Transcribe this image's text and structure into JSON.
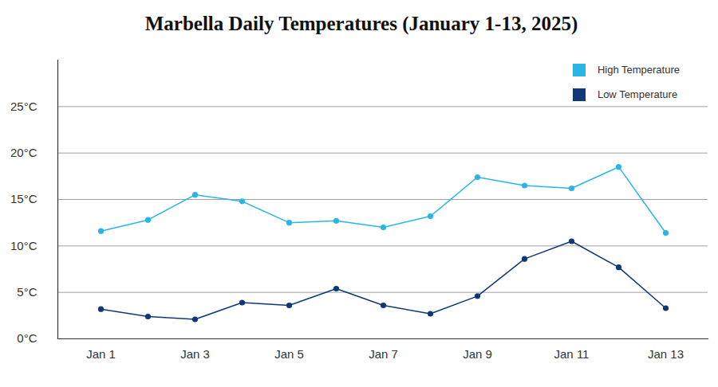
{
  "chart_data": {
    "type": "line",
    "title": "Marbella Daily Temperatures (January 1-13, 2025)",
    "categories": [
      "Jan 1",
      null,
      "Jan 3",
      null,
      "Jan 5",
      null,
      "Jan 7",
      null,
      "Jan 9",
      null,
      "Jan 11",
      null,
      "Jan 13"
    ],
    "series": [
      {
        "name": "High Temperature",
        "color": "#29b5e6",
        "values": [
          11.6,
          12.8,
          15.5,
          14.8,
          12.5,
          12.7,
          12.0,
          13.2,
          17.4,
          16.5,
          16.2,
          18.5,
          11.4
        ]
      },
      {
        "name": "Low Temperature",
        "color": "#0f3878",
        "values": [
          3.2,
          2.4,
          2.1,
          3.9,
          3.6,
          5.4,
          3.6,
          2.7,
          4.6,
          8.6,
          10.5,
          7.7,
          3.3
        ]
      }
    ],
    "ylim": [
      0,
      30
    ],
    "yticks": [
      {
        "value": 0,
        "label": "0°C"
      },
      {
        "value": 5,
        "label": "5°C"
      },
      {
        "value": 10,
        "label": "10°C"
      },
      {
        "value": 15,
        "label": "15°C"
      },
      {
        "value": 20,
        "label": "20°C"
      },
      {
        "value": 25,
        "label": "25°C"
      }
    ],
    "grid": true,
    "legend": "top-right",
    "marker": "circle"
  }
}
